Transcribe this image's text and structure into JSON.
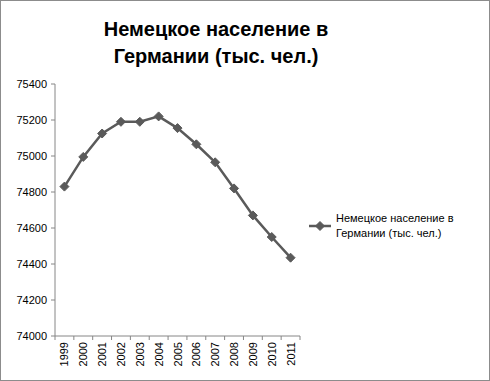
{
  "chart_data": {
    "type": "line",
    "title": "Немецкое население в Германии (тыс. чел.)",
    "categories": [
      "1999",
      "2000",
      "2001",
      "2002",
      "2003",
      "2004",
      "2005",
      "2006",
      "2007",
      "2008",
      "2009",
      "2010",
      "2011"
    ],
    "series": [
      {
        "name": "Немецкое население в Германии (тыс. чел.)",
        "color": "#5a5a5a",
        "marker": "diamond",
        "values": [
          74830,
          74995,
          75125,
          75190,
          75190,
          75220,
          75155,
          75065,
          74965,
          74820,
          74670,
          74550,
          74435
        ]
      }
    ],
    "ylim": [
      74000,
      75400
    ],
    "yticks": [
      74000,
      74200,
      74400,
      74600,
      74800,
      75000,
      75200,
      75400
    ],
    "grid": false,
    "legend": "right"
  }
}
